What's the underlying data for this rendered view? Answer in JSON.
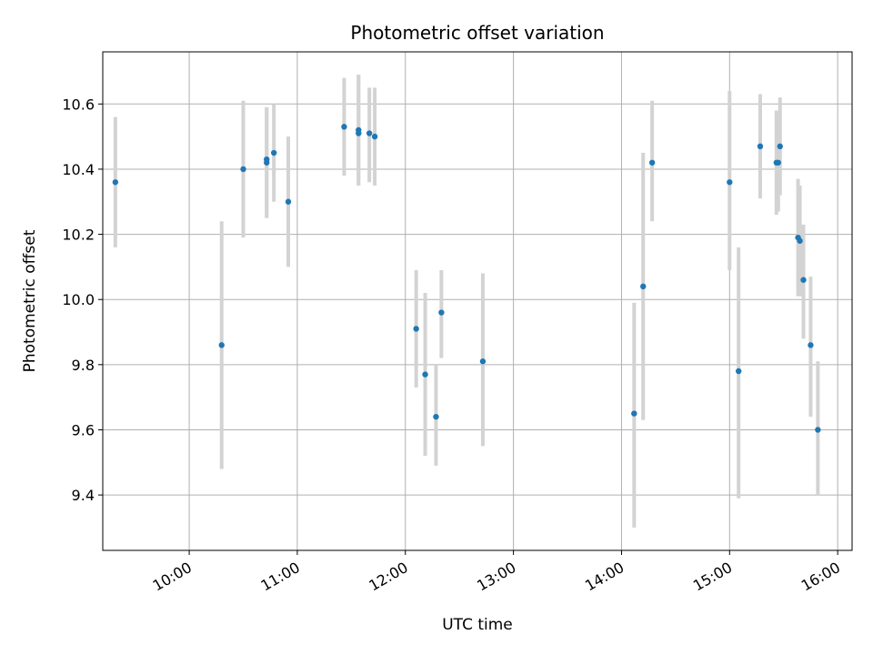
{
  "chart_data": {
    "type": "scatter",
    "title": "Photometric offset variation",
    "xlabel": "UTC time",
    "ylabel": "Photometric offset",
    "xlim": [
      "09:12",
      "16:08"
    ],
    "ylim": [
      9.23,
      10.76
    ],
    "xticks": [
      "10:00",
      "11:00",
      "12:00",
      "13:00",
      "14:00",
      "15:00",
      "16:00"
    ],
    "yticks": [
      9.4,
      9.6,
      9.8,
      10.0,
      10.2,
      10.4,
      10.6
    ],
    "ytick_labels": [
      "9.4",
      "9.6",
      "9.8",
      "10.0",
      "10.2",
      "10.4",
      "10.6"
    ],
    "grid": true,
    "point_color": "#1f77b4",
    "errorbar_color": "#d3d3d3",
    "points": [
      {
        "t": "09:19",
        "y": 10.36,
        "lo": 10.16,
        "hi": 10.56
      },
      {
        "t": "10:18",
        "y": 9.86,
        "lo": 9.48,
        "hi": 10.24
      },
      {
        "t": "10:30",
        "y": 10.4,
        "lo": 10.19,
        "hi": 10.61
      },
      {
        "t": "10:43",
        "y": 10.43,
        "lo": 10.25,
        "hi": 10.59
      },
      {
        "t": "10:43",
        "y": 10.42,
        "lo": 10.25,
        "hi": 10.59
      },
      {
        "t": "10:47",
        "y": 10.45,
        "lo": 10.3,
        "hi": 10.6
      },
      {
        "t": "10:55",
        "y": 10.3,
        "lo": 10.1,
        "hi": 10.5
      },
      {
        "t": "11:26",
        "y": 10.53,
        "lo": 10.38,
        "hi": 10.68
      },
      {
        "t": "11:34",
        "y": 10.52,
        "lo": 10.35,
        "hi": 10.69
      },
      {
        "t": "11:34",
        "y": 10.51,
        "lo": 10.35,
        "hi": 10.69
      },
      {
        "t": "11:40",
        "y": 10.51,
        "lo": 10.36,
        "hi": 10.65
      },
      {
        "t": "11:43",
        "y": 10.5,
        "lo": 10.35,
        "hi": 10.65
      },
      {
        "t": "12:06",
        "y": 9.91,
        "lo": 9.73,
        "hi": 10.09
      },
      {
        "t": "12:11",
        "y": 9.77,
        "lo": 9.52,
        "hi": 10.02
      },
      {
        "t": "12:17",
        "y": 9.64,
        "lo": 9.49,
        "hi": 9.8
      },
      {
        "t": "12:20",
        "y": 9.96,
        "lo": 9.82,
        "hi": 10.09
      },
      {
        "t": "12:43",
        "y": 9.81,
        "lo": 9.55,
        "hi": 10.08
      },
      {
        "t": "14:07",
        "y": 9.65,
        "lo": 9.3,
        "hi": 9.99
      },
      {
        "t": "14:12",
        "y": 10.04,
        "lo": 9.63,
        "hi": 10.45
      },
      {
        "t": "14:17",
        "y": 10.42,
        "lo": 10.24,
        "hi": 10.61
      },
      {
        "t": "15:00",
        "y": 10.36,
        "lo": 10.09,
        "hi": 10.64
      },
      {
        "t": "15:05",
        "y": 9.78,
        "lo": 9.39,
        "hi": 10.16
      },
      {
        "t": "15:17",
        "y": 10.47,
        "lo": 10.31,
        "hi": 10.63
      },
      {
        "t": "15:26",
        "y": 10.42,
        "lo": 10.26,
        "hi": 10.58
      },
      {
        "t": "15:27",
        "y": 10.42,
        "lo": 10.27,
        "hi": 10.57
      },
      {
        "t": "15:28",
        "y": 10.47,
        "lo": 10.32,
        "hi": 10.62
      },
      {
        "t": "15:38",
        "y": 10.19,
        "lo": 10.01,
        "hi": 10.37
      },
      {
        "t": "15:39",
        "y": 10.18,
        "lo": 10.01,
        "hi": 10.35
      },
      {
        "t": "15:41",
        "y": 10.06,
        "lo": 9.88,
        "hi": 10.23
      },
      {
        "t": "15:45",
        "y": 9.86,
        "lo": 9.64,
        "hi": 10.07
      },
      {
        "t": "15:49",
        "y": 9.6,
        "lo": 9.4,
        "hi": 9.81
      }
    ]
  }
}
